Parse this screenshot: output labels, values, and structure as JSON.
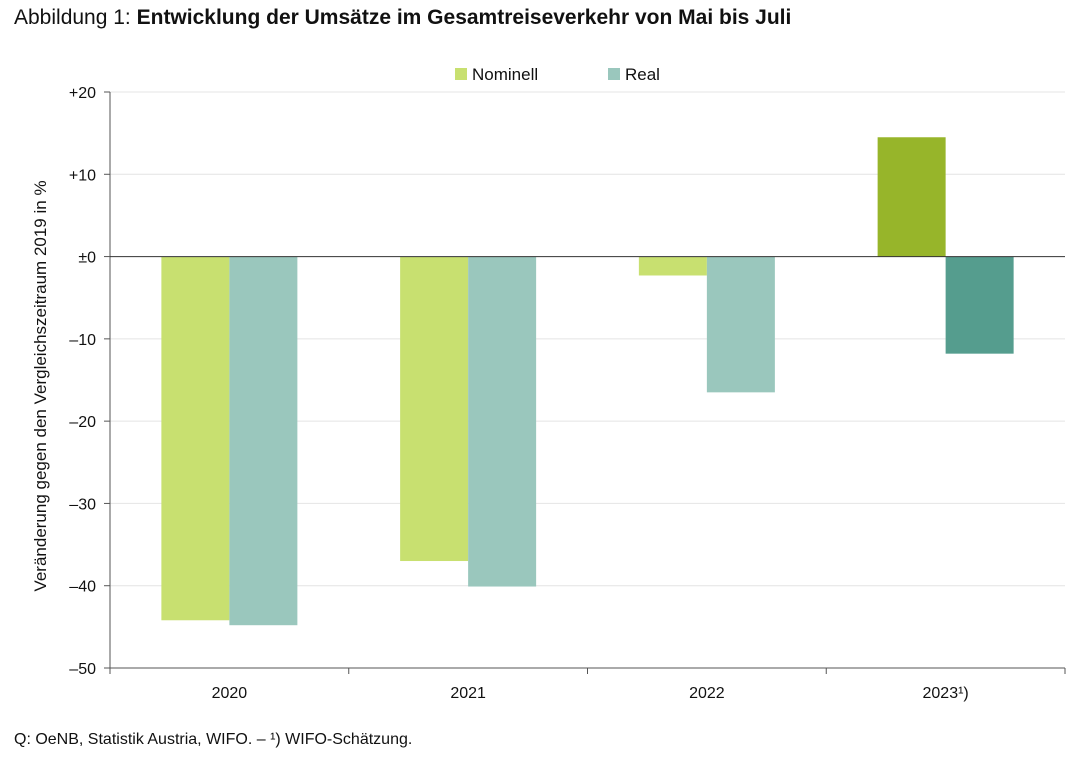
{
  "figure": {
    "title_prefix": "Abbildung 1: ",
    "title_main": "Entwicklung der Umsätze im Gesamtreiseverkehr von Mai bis Juli",
    "source": "Q: OeNB, Statistik Austria, WIFO. – ¹) WIFO-Schätzung."
  },
  "chart_data": {
    "type": "bar",
    "title": "Entwicklung der Umsätze im Gesamtreiseverkehr von Mai bis Juli",
    "categories": [
      "2020",
      "2021",
      "2022",
      "2023¹)"
    ],
    "series": [
      {
        "name": "Nominell",
        "values": [
          -44.2,
          -37.0,
          -2.3,
          14.5
        ],
        "colors": [
          "#c8e070",
          "#c8e070",
          "#c8e070",
          "#97b52a"
        ]
      },
      {
        "name": "Real",
        "values": [
          -44.8,
          -40.1,
          -16.5,
          -11.8
        ],
        "colors": [
          "#9ac7bd",
          "#9ac7bd",
          "#9ac7bd",
          "#559d8e"
        ]
      }
    ],
    "ylabel": "Veränderung gegen den Vergleichszeitraum 2019 in %",
    "xlabel": "",
    "ylim": [
      -50,
      20
    ],
    "yticks": [
      20,
      10,
      0,
      -10,
      -20,
      -30,
      -40,
      -50
    ],
    "ytick_labels": [
      "+20",
      "+10",
      "±0",
      "–10",
      "–20",
      "–30",
      "–40",
      "–50"
    ],
    "legend_position": "top-center",
    "grid": true
  }
}
